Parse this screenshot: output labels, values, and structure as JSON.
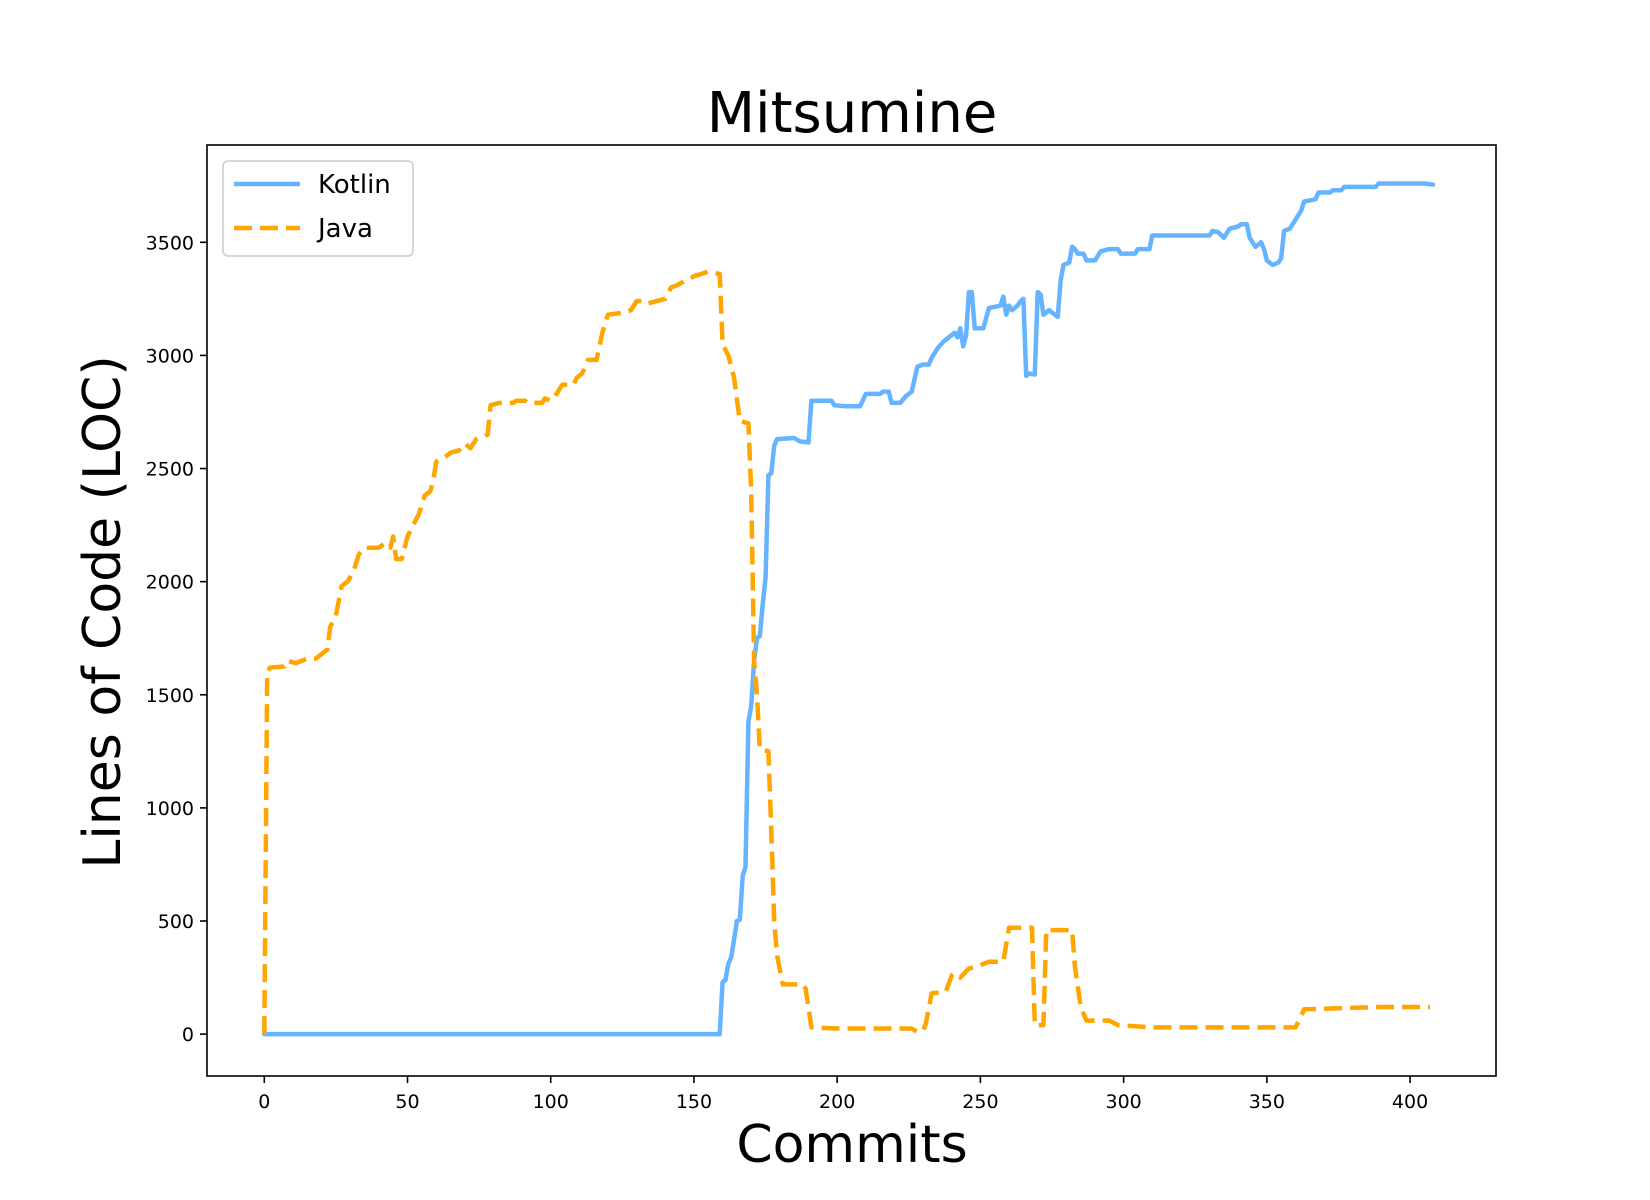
{
  "chart_data": {
    "type": "line",
    "title": "Mitsumine",
    "xlabel": "Commits",
    "ylabel": "Lines of Code (LOC)",
    "xlim": [
      -20,
      430
    ],
    "ylim": [
      -185,
      3930
    ],
    "xticks": [
      0,
      50,
      100,
      150,
      200,
      250,
      300,
      350,
      400
    ],
    "yticks": [
      0,
      500,
      1000,
      1500,
      2000,
      2500,
      3000,
      3500
    ],
    "grid": false,
    "legend_position": "top-left",
    "series": [
      {
        "name": "Kotlin",
        "color": "#66b3ff",
        "style": "solid",
        "points": [
          [
            0,
            0
          ],
          [
            159,
            0
          ],
          [
            160,
            230
          ],
          [
            161,
            240
          ],
          [
            162,
            310
          ],
          [
            163,
            340
          ],
          [
            164,
            420
          ],
          [
            165,
            500
          ],
          [
            166,
            505
          ],
          [
            167,
            700
          ],
          [
            168,
            740
          ],
          [
            169,
            1380
          ],
          [
            170,
            1450
          ],
          [
            171,
            1650
          ],
          [
            172,
            1750
          ],
          [
            173,
            1760
          ],
          [
            174,
            1900
          ],
          [
            175,
            2020
          ],
          [
            176,
            2470
          ],
          [
            177,
            2480
          ],
          [
            178,
            2600
          ],
          [
            179,
            2630
          ],
          [
            185,
            2635
          ],
          [
            187,
            2620
          ],
          [
            190,
            2615
          ],
          [
            191,
            2800
          ],
          [
            198,
            2800
          ],
          [
            199,
            2780
          ],
          [
            203,
            2775
          ],
          [
            208,
            2775
          ],
          [
            210,
            2830
          ],
          [
            215,
            2830
          ],
          [
            216,
            2840
          ],
          [
            218,
            2840
          ],
          [
            219,
            2790
          ],
          [
            222,
            2790
          ],
          [
            224,
            2820
          ],
          [
            226,
            2840
          ],
          [
            228,
            2950
          ],
          [
            230,
            2960
          ],
          [
            232,
            2960
          ],
          [
            233,
            2990
          ],
          [
            235,
            3030
          ],
          [
            237,
            3060
          ],
          [
            239,
            3080
          ],
          [
            241,
            3100
          ],
          [
            242,
            3080
          ],
          [
            243,
            3120
          ],
          [
            244,
            3040
          ],
          [
            245,
            3090
          ],
          [
            246,
            3280
          ],
          [
            247,
            3280
          ],
          [
            248,
            3120
          ],
          [
            251,
            3120
          ],
          [
            253,
            3210
          ],
          [
            255,
            3215
          ],
          [
            257,
            3220
          ],
          [
            258,
            3260
          ],
          [
            259,
            3180
          ],
          [
            260,
            3220
          ],
          [
            261,
            3200
          ],
          [
            263,
            3220
          ],
          [
            264,
            3240
          ],
          [
            265,
            3250
          ],
          [
            266,
            2910
          ],
          [
            267,
            2920
          ],
          [
            269,
            2915
          ],
          [
            270,
            3280
          ],
          [
            271,
            3270
          ],
          [
            272,
            3180
          ],
          [
            273,
            3190
          ],
          [
            274,
            3200
          ],
          [
            275,
            3190
          ],
          [
            276,
            3180
          ],
          [
            277,
            3170
          ],
          [
            278,
            3330
          ],
          [
            279,
            3400
          ],
          [
            281,
            3410
          ],
          [
            282,
            3480
          ],
          [
            283,
            3470
          ],
          [
            284,
            3450
          ],
          [
            286,
            3450
          ],
          [
            287,
            3420
          ],
          [
            290,
            3420
          ],
          [
            292,
            3460
          ],
          [
            295,
            3470
          ],
          [
            298,
            3470
          ],
          [
            299,
            3450
          ],
          [
            304,
            3450
          ],
          [
            305,
            3470
          ],
          [
            309,
            3470
          ],
          [
            310,
            3530
          ],
          [
            330,
            3530
          ],
          [
            331,
            3550
          ],
          [
            333,
            3545
          ],
          [
            335,
            3520
          ],
          [
            337,
            3560
          ],
          [
            340,
            3570
          ],
          [
            341,
            3580
          ],
          [
            343,
            3580
          ],
          [
            344,
            3520
          ],
          [
            345,
            3500
          ],
          [
            346,
            3480
          ],
          [
            348,
            3500
          ],
          [
            349,
            3470
          ],
          [
            350,
            3420
          ],
          [
            352,
            3400
          ],
          [
            354,
            3410
          ],
          [
            355,
            3430
          ],
          [
            356,
            3550
          ],
          [
            358,
            3560
          ],
          [
            360,
            3600
          ],
          [
            362,
            3640
          ],
          [
            363,
            3680
          ],
          [
            367,
            3690
          ],
          [
            368,
            3720
          ],
          [
            372,
            3720
          ],
          [
            373,
            3730
          ],
          [
            376,
            3730
          ],
          [
            377,
            3745
          ],
          [
            388,
            3745
          ],
          [
            389,
            3760
          ],
          [
            395,
            3760
          ],
          [
            405,
            3760
          ],
          [
            408,
            3755
          ]
        ]
      },
      {
        "name": "Java",
        "color": "#ffa500",
        "style": "dashed",
        "points": [
          [
            0,
            0
          ],
          [
            1,
            1600
          ],
          [
            2,
            1620
          ],
          [
            7,
            1625
          ],
          [
            8,
            1650
          ],
          [
            11,
            1640
          ],
          [
            15,
            1660
          ],
          [
            18,
            1660
          ],
          [
            20,
            1680
          ],
          [
            22,
            1700
          ],
          [
            23,
            1800
          ],
          [
            25,
            1850
          ],
          [
            27,
            1980
          ],
          [
            29,
            2000
          ],
          [
            31,
            2040
          ],
          [
            33,
            2120
          ],
          [
            35,
            2150
          ],
          [
            40,
            2150
          ],
          [
            42,
            2170
          ],
          [
            44,
            2150
          ],
          [
            45,
            2200
          ],
          [
            46,
            2100
          ],
          [
            48,
            2100
          ],
          [
            50,
            2200
          ],
          [
            52,
            2250
          ],
          [
            54,
            2300
          ],
          [
            56,
            2380
          ],
          [
            58,
            2400
          ],
          [
            59,
            2450
          ],
          [
            60,
            2530
          ],
          [
            63,
            2550
          ],
          [
            65,
            2570
          ],
          [
            68,
            2580
          ],
          [
            70,
            2610
          ],
          [
            72,
            2590
          ],
          [
            74,
            2630
          ],
          [
            78,
            2650
          ],
          [
            79,
            2780
          ],
          [
            82,
            2790
          ],
          [
            87,
            2790
          ],
          [
            88,
            2800
          ],
          [
            91,
            2800
          ],
          [
            92,
            2790
          ],
          [
            97,
            2790
          ],
          [
            98,
            2810
          ],
          [
            100,
            2800
          ],
          [
            102,
            2830
          ],
          [
            104,
            2870
          ],
          [
            108,
            2870
          ],
          [
            109,
            2900
          ],
          [
            111,
            2920
          ],
          [
            113,
            2980
          ],
          [
            116,
            2980
          ],
          [
            118,
            3100
          ],
          [
            120,
            3180
          ],
          [
            126,
            3190
          ],
          [
            128,
            3200
          ],
          [
            130,
            3240
          ],
          [
            133,
            3240
          ],
          [
            134,
            3230
          ],
          [
            137,
            3240
          ],
          [
            140,
            3250
          ],
          [
            142,
            3300
          ],
          [
            144,
            3310
          ],
          [
            147,
            3330
          ],
          [
            150,
            3350
          ],
          [
            155,
            3370
          ],
          [
            159,
            3360
          ],
          [
            160,
            3050
          ],
          [
            162,
            3000
          ],
          [
            164,
            2900
          ],
          [
            166,
            2710
          ],
          [
            169,
            2700
          ],
          [
            170,
            2400
          ],
          [
            171,
            1650
          ],
          [
            172,
            1500
          ],
          [
            173,
            1260
          ],
          [
            176,
            1250
          ],
          [
            177,
            900
          ],
          [
            178,
            500
          ],
          [
            179,
            350
          ],
          [
            181,
            220
          ],
          [
            188,
            220
          ],
          [
            189,
            200
          ],
          [
            191,
            30
          ],
          [
            200,
            25
          ],
          [
            209,
            25
          ],
          [
            226,
            25
          ],
          [
            228,
            10
          ],
          [
            230,
            15
          ],
          [
            231,
            50
          ],
          [
            233,
            180
          ],
          [
            236,
            185
          ],
          [
            238,
            190
          ],
          [
            240,
            260
          ],
          [
            241,
            270
          ],
          [
            243,
            250
          ],
          [
            246,
            290
          ],
          [
            249,
            300
          ],
          [
            253,
            320
          ],
          [
            258,
            320
          ],
          [
            260,
            470
          ],
          [
            268,
            470
          ],
          [
            269,
            40
          ],
          [
            272,
            40
          ],
          [
            273,
            460
          ],
          [
            279,
            460
          ],
          [
            282,
            460
          ],
          [
            283,
            300
          ],
          [
            285,
            120
          ],
          [
            287,
            60
          ],
          [
            295,
            60
          ],
          [
            298,
            40
          ],
          [
            310,
            30
          ],
          [
            360,
            30
          ],
          [
            362,
            80
          ],
          [
            363,
            110
          ],
          [
            390,
            120
          ],
          [
            407,
            120
          ]
        ]
      }
    ]
  }
}
